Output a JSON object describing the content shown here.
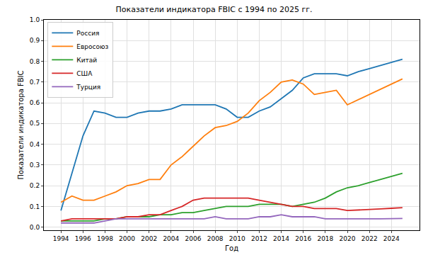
{
  "chart_data": {
    "type": "line",
    "title": "Показатели индикатора FBIC с 1994 по 2025 гг.",
    "x_label": "Год",
    "y_label": "Показатели индикатора FBIC",
    "x": [
      1994,
      1995,
      1996,
      1997,
      1998,
      1999,
      2000,
      2001,
      2002,
      2003,
      2004,
      2005,
      2006,
      2007,
      2008,
      2009,
      2010,
      2011,
      2012,
      2013,
      2014,
      2015,
      2016,
      2017,
      2018,
      2019,
      2020,
      2021,
      2022,
      2023,
      2024,
      2025
    ],
    "series": [
      {
        "name": "Россия",
        "color": "#1f77b4",
        "values": [
          0.08,
          0.26,
          0.44,
          0.56,
          0.55,
          0.53,
          0.53,
          0.55,
          0.56,
          0.56,
          0.57,
          0.59,
          0.59,
          0.59,
          0.59,
          0.57,
          0.53,
          0.53,
          0.56,
          0.58,
          0.62,
          0.66,
          0.72,
          0.74,
          0.74,
          0.74,
          0.73,
          0.75,
          0.765,
          0.78,
          0.795,
          0.81
        ]
      },
      {
        "name": "Евросоюз",
        "color": "#ff7f0e",
        "values": [
          0.12,
          0.15,
          0.13,
          0.13,
          0.15,
          0.17,
          0.2,
          0.21,
          0.23,
          0.23,
          0.3,
          0.34,
          0.39,
          0.44,
          0.48,
          0.49,
          0.51,
          0.55,
          0.61,
          0.65,
          0.7,
          0.71,
          0.69,
          0.64,
          0.65,
          0.66,
          0.59,
          0.615,
          0.64,
          0.665,
          0.69,
          0.715
        ]
      },
      {
        "name": "Китай",
        "color": "#2ca02c",
        "values": [
          0.03,
          0.03,
          0.03,
          0.03,
          0.04,
          0.04,
          0.05,
          0.05,
          0.05,
          0.06,
          0.06,
          0.07,
          0.07,
          0.08,
          0.09,
          0.1,
          0.1,
          0.1,
          0.11,
          0.11,
          0.11,
          0.1,
          0.11,
          0.12,
          0.14,
          0.17,
          0.19,
          0.2,
          0.215,
          0.23,
          0.245,
          0.26
        ]
      },
      {
        "name": "США",
        "color": "#d62728",
        "values": [
          0.03,
          0.04,
          0.04,
          0.04,
          0.04,
          0.04,
          0.05,
          0.05,
          0.06,
          0.06,
          0.08,
          0.1,
          0.13,
          0.14,
          0.14,
          0.14,
          0.14,
          0.14,
          0.13,
          0.12,
          0.11,
          0.1,
          0.1,
          0.09,
          0.09,
          0.09,
          0.08,
          0.082,
          0.085,
          0.088,
          0.091,
          0.094
        ]
      },
      {
        "name": "Турция",
        "color": "#9467bd",
        "values": [
          0.02,
          0.02,
          0.02,
          0.02,
          0.03,
          0.04,
          0.04,
          0.04,
          0.04,
          0.04,
          0.04,
          0.04,
          0.04,
          0.04,
          0.05,
          0.04,
          0.04,
          0.04,
          0.05,
          0.05,
          0.06,
          0.05,
          0.05,
          0.05,
          0.04,
          0.04,
          0.04,
          0.038,
          0.039,
          0.04,
          0.041,
          0.042
        ]
      }
    ],
    "xlim": [
      1992.45,
      2026.55
    ],
    "xticks": [
      1994,
      1996,
      1998,
      2000,
      2002,
      2004,
      2006,
      2008,
      2010,
      2012,
      2014,
      2016,
      2018,
      2020,
      2022,
      2024
    ],
    "ylim": [
      -0.015,
      1.0
    ],
    "yticks": [
      {
        "value": 0,
        "label": "0.0"
      },
      0.1,
      0.2,
      0.3,
      0.4,
      0.5,
      0.6,
      0.7,
      0.8,
      0.9,
      {
        "value": 1,
        "label": "1.0"
      }
    ],
    "grid": true,
    "legend": "upper left"
  }
}
